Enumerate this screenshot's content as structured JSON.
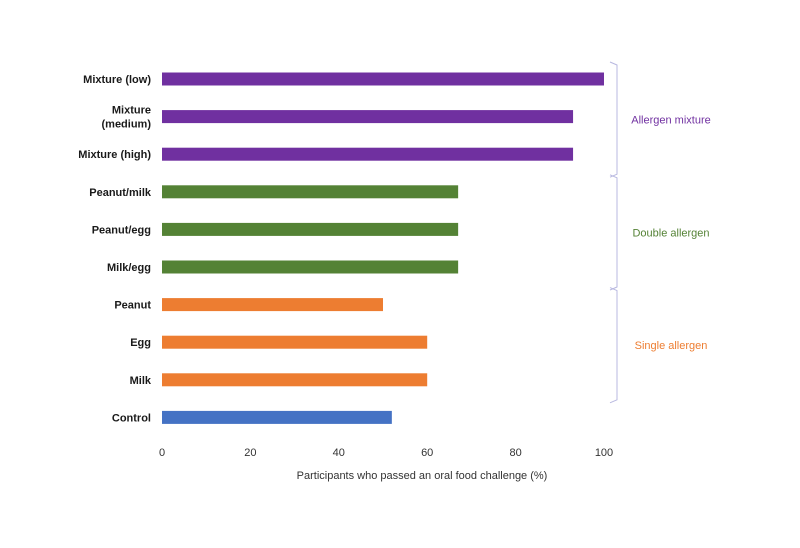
{
  "chart_data": {
    "type": "bar",
    "orientation": "horizontal",
    "title": "",
    "xlabel": "Participants who passed an oral food challenge (%)",
    "ylabel": "",
    "xlim": [
      0,
      100
    ],
    "xticks": [
      0,
      20,
      40,
      60,
      80,
      100
    ],
    "grid": false,
    "categories": [
      {
        "label": [
          "Mixture (low)"
        ],
        "value": 100,
        "group": "mixture"
      },
      {
        "label": [
          "Mixture",
          "(medium)"
        ],
        "value": 93,
        "group": "mixture"
      },
      {
        "label": [
          "Mixture (high)"
        ],
        "value": 93,
        "group": "mixture"
      },
      {
        "label": [
          "Peanut/milk"
        ],
        "value": 67,
        "group": "double"
      },
      {
        "label": [
          "Peanut/egg"
        ],
        "value": 67,
        "group": "double"
      },
      {
        "label": [
          "Milk/egg"
        ],
        "value": 67,
        "group": "double"
      },
      {
        "label": [
          "Peanut"
        ],
        "value": 50,
        "group": "single"
      },
      {
        "label": [
          "Egg"
        ],
        "value": 60,
        "group": "single"
      },
      {
        "label": [
          "Milk"
        ],
        "value": 60,
        "group": "single"
      },
      {
        "label": [
          "Control"
        ],
        "value": 52,
        "group": "control"
      }
    ],
    "groups": {
      "mixture": {
        "label": "Allergen mixture",
        "color": "#7030a0",
        "bracket": true
      },
      "double": {
        "label": "Double allergen",
        "color": "#548235",
        "bracket": true
      },
      "single": {
        "label": "Single allergen",
        "color": "#ed7d31",
        "bracket": true
      },
      "control": {
        "label": "",
        "color": "#4472c4",
        "bracket": false
      }
    },
    "bracket_color": "#b8b8e0"
  }
}
